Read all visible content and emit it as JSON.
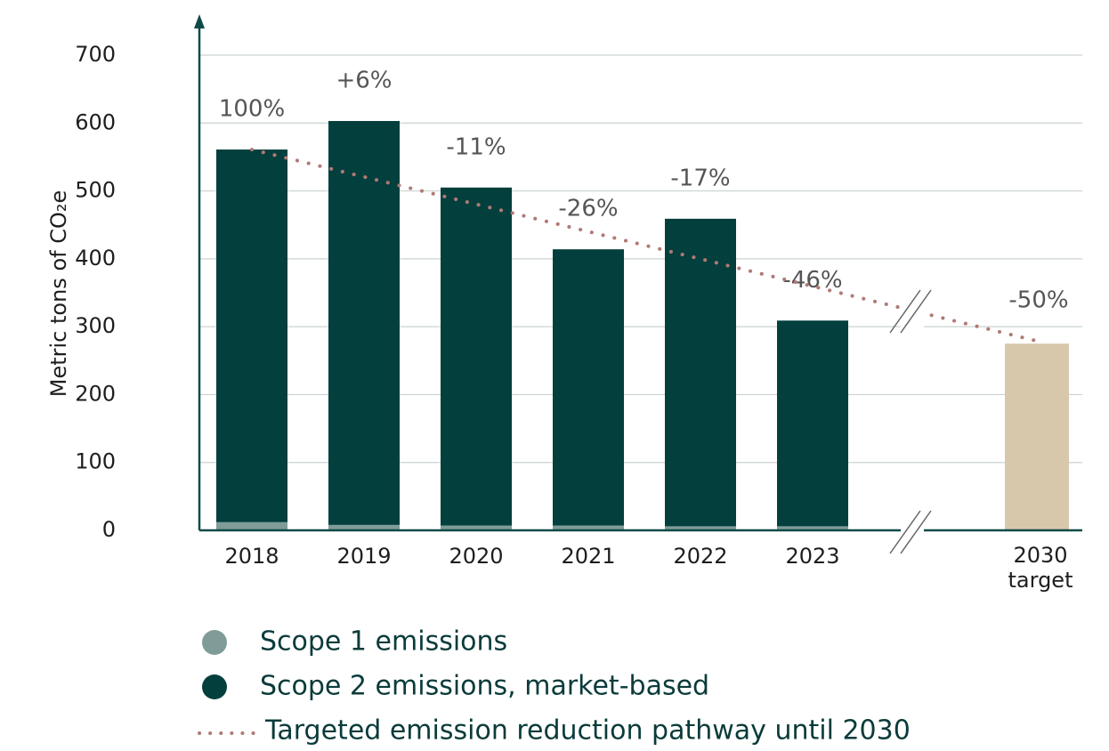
{
  "chart_data": {
    "type": "bar",
    "stacked": true,
    "y_label": "Metric tons of CO₂e",
    "categories": [
      "2018",
      "2019",
      "2020",
      "2021",
      "2022",
      "2023",
      null,
      "2030 target"
    ],
    "series": [
      {
        "name": "Scope 1 emissions",
        "color": "#7f9c98",
        "values": [
          12,
          8,
          7,
          7,
          6,
          6,
          null,
          null
        ]
      },
      {
        "name": "Scope 2 emissions, market-based",
        "color": "#033f3d",
        "values": [
          549,
          595,
          498,
          407,
          453,
          303,
          null,
          null
        ]
      }
    ],
    "target": {
      "category": 7,
      "value": 275,
      "color": "#d8c8ab"
    },
    "change_labels": [
      "100%",
      "+6%",
      "-11%",
      "-26%",
      "-17%",
      "-46%",
      null,
      "-50%"
    ],
    "pathway": {
      "name": "Targeted emission reduction pathway until 2030",
      "color": "#b07a76",
      "points": [
        {
          "category": 0,
          "value": 561
        },
        {
          "category": 7,
          "value": 279
        }
      ]
    },
    "ylim": [
      0,
      700
    ],
    "yticks": [
      0,
      100,
      200,
      300,
      400,
      500,
      600,
      700
    ],
    "grid": true
  }
}
